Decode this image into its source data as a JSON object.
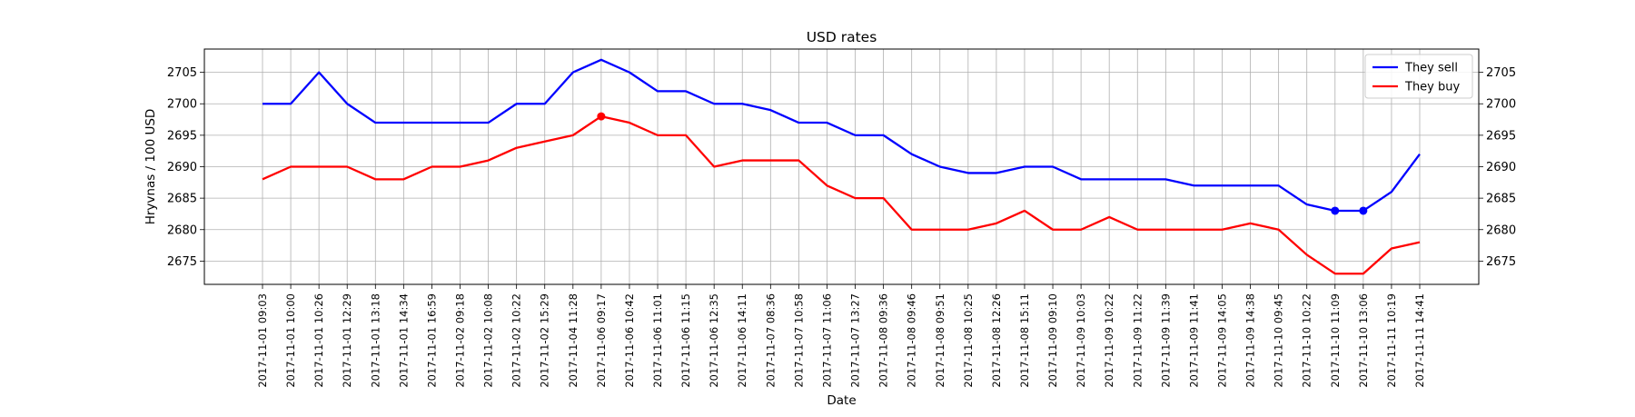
{
  "chart_data": {
    "type": "line",
    "title": "USD rates",
    "xlabel": "Date",
    "ylabel": "Hryvnas / 100 USD",
    "ylim": [
      2671.3,
      2708.7
    ],
    "yticks": [
      2675,
      2680,
      2685,
      2690,
      2695,
      2700,
      2705
    ],
    "grid": true,
    "legend_position": "top-right",
    "categories": [
      "2017-11-01 09:03",
      "2017-11-01 10:00",
      "2017-11-01 10:26",
      "2017-11-01 12:29",
      "2017-11-01 13:18",
      "2017-11-01 14:34",
      "2017-11-01 16:59",
      "2017-11-02 09:18",
      "2017-11-02 10:08",
      "2017-11-02 10:22",
      "2017-11-02 15:29",
      "2017-11-04 11:28",
      "2017-11-06 09:17",
      "2017-11-06 10:42",
      "2017-11-06 11:01",
      "2017-11-06 11:15",
      "2017-11-06 12:35",
      "2017-11-06 14:11",
      "2017-11-07 08:36",
      "2017-11-07 10:58",
      "2017-11-07 11:06",
      "2017-11-07 13:27",
      "2017-11-08 09:36",
      "2017-11-08 09:46",
      "2017-11-08 09:51",
      "2017-11-08 10:25",
      "2017-11-08 12:26",
      "2017-11-08 15:11",
      "2017-11-09 09:10",
      "2017-11-09 10:03",
      "2017-11-09 10:22",
      "2017-11-09 11:22",
      "2017-11-09 11:39",
      "2017-11-09 11:41",
      "2017-11-09 14:05",
      "2017-11-09 14:38",
      "2017-11-10 09:45",
      "2017-11-10 10:22",
      "2017-11-10 11:09",
      "2017-11-10 13:06",
      "2017-11-11 10:19",
      "2017-11-11 14:41"
    ],
    "series": [
      {
        "name": "They sell",
        "color": "#0000ff",
        "values": [
          2700,
          2700,
          2705,
          2700,
          2697,
          2697,
          2697,
          2697,
          2697,
          2700,
          2700,
          2705,
          2707,
          2705,
          2702,
          2702,
          2700,
          2700,
          2699,
          2697,
          2697,
          2695,
          2695,
          2692,
          2690,
          2689,
          2689,
          2690,
          2690,
          2688,
          2688,
          2688,
          2688,
          2687,
          2687,
          2687,
          2687,
          2684,
          2683,
          2683,
          2686,
          2692
        ],
        "markers": [
          38,
          39
        ]
      },
      {
        "name": "They buy",
        "color": "#ff0000",
        "values": [
          2688,
          2690,
          2690,
          2690,
          2688,
          2688,
          2690,
          2690,
          2691,
          2693,
          2694,
          2695,
          2698,
          2697,
          2695,
          2695,
          2690,
          2691,
          2691,
          2691,
          2687,
          2685,
          2685,
          2680,
          2680,
          2680,
          2681,
          2683,
          2680,
          2680,
          2682,
          2680,
          2680,
          2680,
          2680,
          2681,
          2680,
          2676,
          2673,
          2673,
          2677,
          2678
        ],
        "markers": [
          12
        ]
      }
    ]
  }
}
